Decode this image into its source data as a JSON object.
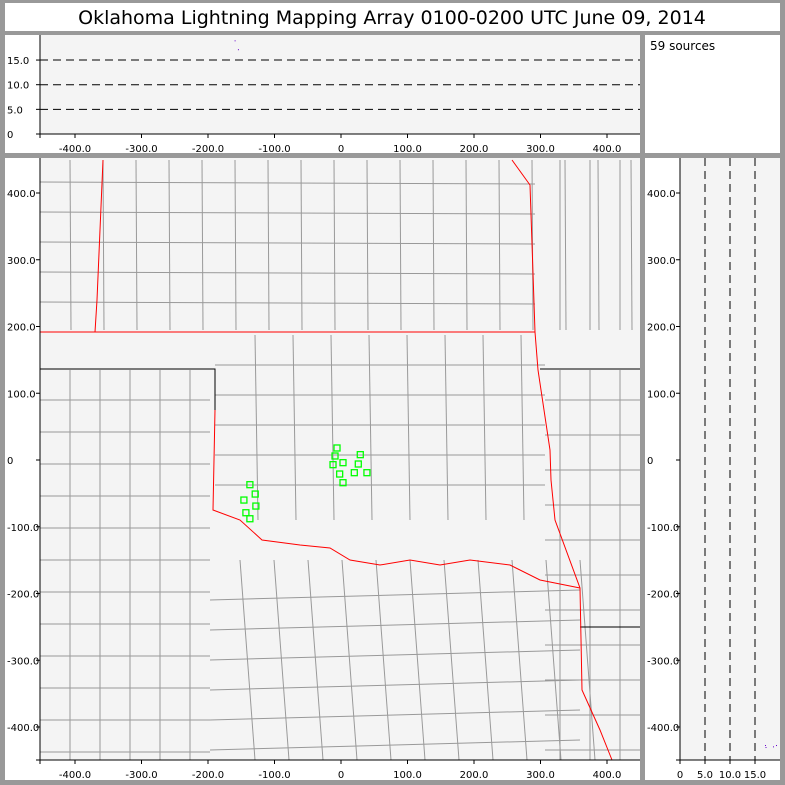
{
  "title": "Oklahoma Lightning Mapping Array   0100-0200 UTC  June 09, 2014",
  "source_count_label": "59 sources",
  "colors": {
    "background": "#999999",
    "plot_bg": "#f4f4f4",
    "state_border": "#ff0000",
    "county_border": "#999999",
    "source_marker": "#00ff00",
    "altitude_point": "#6600cc"
  },
  "chart_data": {
    "type": "scatter",
    "plan_view": {
      "xlim": [
        -450,
        450
      ],
      "ylim": [
        -450,
        450
      ],
      "x_ticks": [
        "-400.0",
        "-300.0",
        "-200.0",
        "-100.0",
        "0",
        "100.0",
        "200.0",
        "300.0",
        "400.0"
      ],
      "y_ticks": [
        "400.0",
        "300.0",
        "200.0",
        "100.0",
        "0",
        "-100.0",
        "-200.0",
        "-300.0",
        "-400.0"
      ],
      "sources_km": [
        [
          -6,
          18
        ],
        [
          -9,
          6
        ],
        [
          29,
          8
        ],
        [
          -12,
          -7
        ],
        [
          3,
          -4
        ],
        [
          26,
          -6
        ],
        [
          -2,
          -21
        ],
        [
          20,
          -19
        ],
        [
          39,
          -19
        ],
        [
          3,
          -34
        ],
        [
          -137,
          -37
        ],
        [
          -129,
          -51
        ],
        [
          -146,
          -60
        ],
        [
          -128,
          -69
        ],
        [
          -143,
          -79
        ],
        [
          -137,
          -88
        ]
      ]
    },
    "altitude_view": {
      "xlim": [
        -450,
        450
      ],
      "ylim": [
        0,
        20
      ],
      "y_ticks": [
        "15.0",
        "10.0",
        "5.0",
        "0"
      ],
      "x_ticks": [
        "-400.0",
        "-300.0",
        "-200.0",
        "-100.0",
        "0",
        "100.0",
        "200.0",
        "300.0",
        "400.0"
      ],
      "dashed_levels": [
        5,
        10,
        15
      ],
      "points": [
        [
          -160,
          19
        ],
        [
          -155,
          17.2
        ]
      ]
    },
    "side_altitude_view": {
      "xlim": [
        0,
        20
      ],
      "x_ticks": [
        "0",
        "5.0",
        "10.0",
        "15.0"
      ],
      "dashed_levels": [
        5,
        10,
        15
      ],
      "points": [
        [
          17,
          -427
        ],
        [
          17.1,
          -430
        ],
        [
          18.6,
          -429
        ],
        [
          19.2,
          -427
        ]
      ]
    }
  }
}
